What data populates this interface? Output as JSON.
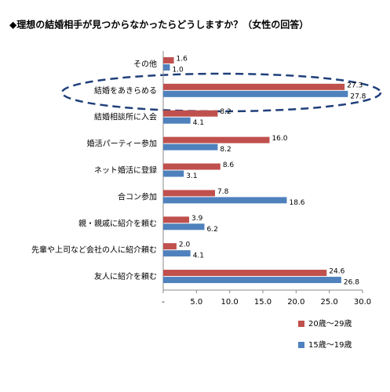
{
  "chart_data": {
    "type": "bar",
    "orientation": "horizontal",
    "title": "◆理想の結婚相手が見つからなかったらどうしますか？（女性の回答）",
    "categories": [
      "その他",
      "結婚をあきらめる",
      "結婚相談所に入会",
      "婚活パーティー参加",
      "ネット婚活に登録",
      "合コン参加",
      "親・親戚に紹介を頼む",
      "先輩や上司など会社の人に紹介頼む",
      "友人に紹介を頼む"
    ],
    "series": [
      {
        "name": "20歳～29歳",
        "color": "#c0504d",
        "values": [
          1.6,
          27.3,
          8.2,
          16.0,
          8.6,
          7.8,
          3.9,
          2.0,
          24.6
        ],
        "value_labels": [
          "1.6",
          "27.3",
          "8.2",
          "16.0",
          "8.6",
          "7.8",
          "3.9",
          "2.0",
          "24.6"
        ]
      },
      {
        "name": "15歳～19歳",
        "color": "#4f81bd",
        "values": [
          1.0,
          27.8,
          4.1,
          8.2,
          3.1,
          18.6,
          6.2,
          4.1,
          26.8
        ],
        "value_labels": [
          "1.0",
          "27.8",
          "4.1",
          "8.2",
          "3.1",
          "18.6",
          "6.2",
          "4.1",
          "26.8"
        ]
      }
    ],
    "xlim": [
      0,
      30
    ],
    "xticks": [
      {
        "value": 0,
        "label": "-"
      },
      {
        "value": 5,
        "label": "5.0"
      },
      {
        "value": 10,
        "label": "10.0"
      },
      {
        "value": 15,
        "label": "15.0"
      },
      {
        "value": 20,
        "label": "20.0"
      },
      {
        "value": 25,
        "label": "25.0"
      },
      {
        "value": 30,
        "label": "30.0"
      }
    ],
    "legend": "bottom-right"
  }
}
